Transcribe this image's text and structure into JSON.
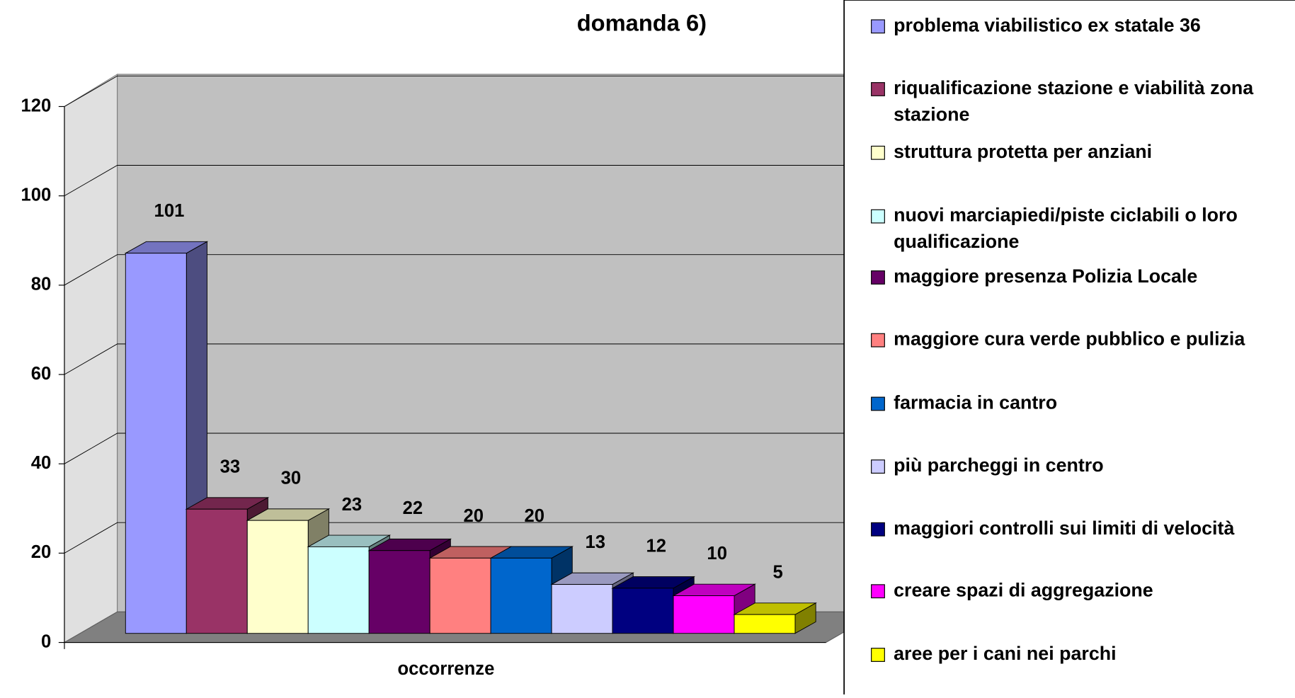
{
  "chart_data": {
    "type": "bar3d",
    "title": "domanda 6)",
    "categories": [
      "occorrenze"
    ],
    "series": [
      {
        "name": "problema viabilistico ex statale 36",
        "color": "#9999ff",
        "values": [
          101
        ]
      },
      {
        "name": "riqualificazione stazione e viabilità zona stazione",
        "color": "#993366",
        "values": [
          33
        ]
      },
      {
        "name": "struttura protetta per anziani",
        "color": "#ffffcc",
        "values": [
          30
        ]
      },
      {
        "name": "nuovi marciapiedi/piste ciclabili o loro qualificazione",
        "color": "#ccffff",
        "values": [
          23
        ]
      },
      {
        "name": "maggiore presenza Polizia Locale",
        "color": "#660066",
        "values": [
          22
        ]
      },
      {
        "name": "maggiore cura verde pubblico e pulizia",
        "color": "#ff8080",
        "values": [
          20
        ]
      },
      {
        "name": "farmacia in cantro",
        "color": "#0066cc",
        "values": [
          20
        ]
      },
      {
        "name": "più parcheggi in centro",
        "color": "#ccccff",
        "values": [
          13
        ]
      },
      {
        "name": "maggiori controlli sui limiti di velocità",
        "color": "#000080",
        "values": [
          12
        ]
      },
      {
        "name": "creare spazi di aggregazione",
        "color": "#ff00ff",
        "values": [
          10
        ]
      },
      {
        "name": "aree per i cani nei parchi",
        "color": "#ffff00",
        "values": [
          5
        ]
      }
    ],
    "ylim": [
      0,
      120
    ],
    "yticks": [
      0,
      20,
      40,
      60,
      80,
      100,
      120
    ],
    "grid": true,
    "legend": "right"
  }
}
